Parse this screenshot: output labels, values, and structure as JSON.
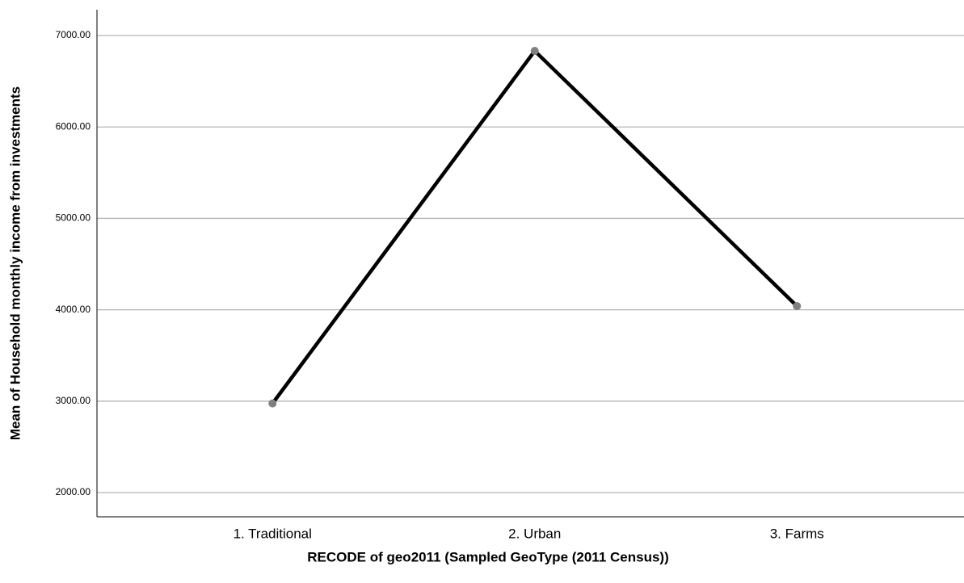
{
  "chart_data": {
    "type": "line",
    "y_label": "Mean of Household monthly income from investments",
    "x_label": "RECODE of geo2011 (Sampled GeoType (2011 Census))",
    "categories": [
      "1. Traditional",
      "2. Urban",
      "3. Farms"
    ],
    "values": [
      2975,
      6832,
      4040
    ],
    "color": "#000000",
    "marker_color": "#808080",
    "ylim": [
      1735,
      7283
    ],
    "yticks": [
      {
        "value": 2000,
        "label": "2000.00"
      },
      {
        "value": 3000,
        "label": "3000.00"
      },
      {
        "value": 4000,
        "label": "4000.00"
      },
      {
        "value": 5000,
        "label": "5000.00"
      },
      {
        "value": 6000,
        "label": "6000.00"
      },
      {
        "value": 7000,
        "label": "7000.00"
      }
    ],
    "grid": true
  }
}
